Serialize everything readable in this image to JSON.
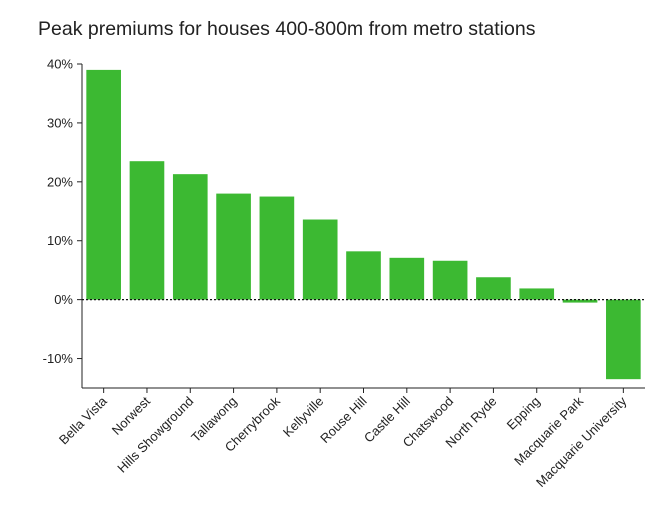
{
  "chart_data": {
    "type": "bar",
    "title": "Peak premiums for houses 400-800m from metro stations",
    "categories": [
      "Bella Vista",
      "Norwest",
      "Hills Showground",
      "Tallawong",
      "Cherrybrook",
      "Kellyville",
      "Rouse Hill",
      "Castle Hill",
      "Chatswood",
      "North Ryde",
      "Epping",
      "Macquarie Park",
      "Macquarie University"
    ],
    "values": [
      39.0,
      23.5,
      21.3,
      18.0,
      17.5,
      13.6,
      8.2,
      7.1,
      6.6,
      3.8,
      1.9,
      -0.5,
      -13.5
    ],
    "xlabel": "",
    "ylabel": "",
    "ylim": [
      -15,
      40
    ],
    "yticks": [
      -10,
      0,
      10,
      20,
      30,
      40
    ],
    "ytick_labels": [
      "-10%",
      "0%",
      "10%",
      "20%",
      "30%",
      "40%"
    ],
    "bar_color": "#3cb932",
    "zero_line_style": "dotted",
    "grid": false,
    "legend": "none"
  }
}
